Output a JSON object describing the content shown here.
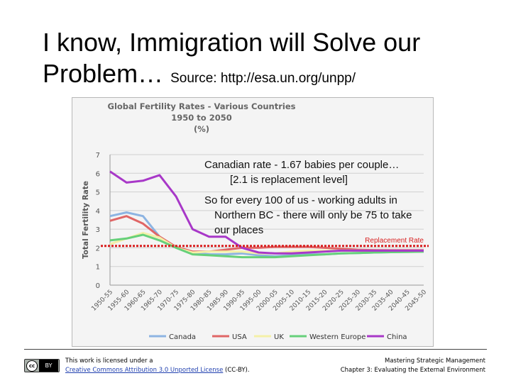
{
  "slide": {
    "title_main": "I know, Immigration will Solve our Problem…",
    "title_source": "Source: http://esa.un.org/unpp/"
  },
  "notes": {
    "canadian_line1": "Canadian rate - 1.67 babies per couple…",
    "canadian_line2": "[2.1 is replacement level]",
    "per100_line1": "So for every 100 of us - working adults in",
    "per100_line2": "Northern BC - there will only be 75 to take",
    "per100_line3": "our places"
  },
  "footer": {
    "license_prefix": "This work is licensed under a",
    "license_link": "Creative Commons Attribution 3.0 Unported License",
    "license_suffix": "(CC-BY).",
    "credit_line1": "Mastering Strategic Management",
    "credit_line2": "Chapter 3: Evaluating the External Environment"
  },
  "chart_data": {
    "type": "line",
    "title_lines": [
      "Global Fertility Rates -  Various Countries",
      "1950 to 2050",
      "(%)"
    ],
    "xlabel": "",
    "ylabel": "Total Fertility Rate",
    "ylim": [
      0,
      7
    ],
    "yticks": [
      0,
      1,
      2,
      3,
      4,
      5,
      6,
      7
    ],
    "grid": true,
    "legend": "bottom",
    "categories": [
      "1950-55",
      "1955-60",
      "1960-65",
      "1965-70",
      "1970-75",
      "1975-80",
      "1980-85",
      "1985-90",
      "1990-95",
      "1995-00",
      "2000-05",
      "2005-10",
      "2010-15",
      "2015-20",
      "2020-25",
      "2025-30",
      "2030-35",
      "2035-40",
      "2040-45",
      "2045-50"
    ],
    "series": [
      {
        "name": "Canada",
        "color": "#8db4e2",
        "values": [
          3.7,
          3.9,
          3.7,
          2.6,
          2.0,
          1.75,
          1.65,
          1.65,
          1.7,
          1.6,
          1.55,
          1.6,
          1.65,
          1.65,
          1.7,
          1.72,
          1.75,
          1.77,
          1.8,
          1.8
        ]
      },
      {
        "name": "USA",
        "color": "#e06666",
        "values": [
          3.45,
          3.7,
          3.3,
          2.6,
          2.05,
          1.8,
          1.8,
          1.9,
          2.0,
          2.0,
          2.05,
          2.05,
          2.05,
          2.0,
          1.95,
          1.9,
          1.88,
          1.87,
          1.87,
          1.87
        ]
      },
      {
        "name": "UK",
        "color": "#f4f0a8",
        "values": [
          2.2,
          2.5,
          2.8,
          2.55,
          2.0,
          1.75,
          1.8,
          1.8,
          1.8,
          1.7,
          1.7,
          1.8,
          1.85,
          1.85,
          1.85,
          1.85,
          1.85,
          1.85,
          1.85,
          1.85
        ]
      },
      {
        "name": "Western Europe",
        "color": "#66d07a",
        "values": [
          2.4,
          2.5,
          2.7,
          2.4,
          2.0,
          1.65,
          1.6,
          1.55,
          1.5,
          1.5,
          1.5,
          1.55,
          1.6,
          1.65,
          1.7,
          1.72,
          1.75,
          1.77,
          1.78,
          1.8
        ]
      },
      {
        "name": "China",
        "color": "#a838c8",
        "values": [
          6.1,
          5.5,
          5.6,
          5.9,
          4.75,
          3.0,
          2.6,
          2.6,
          2.0,
          1.75,
          1.7,
          1.7,
          1.75,
          1.8,
          1.85,
          1.85,
          1.85,
          1.85,
          1.85,
          1.85
        ]
      }
    ],
    "annotations": [
      {
        "label": "Replacement Rate",
        "y": 2.1,
        "color": "#d81f1f"
      }
    ]
  }
}
